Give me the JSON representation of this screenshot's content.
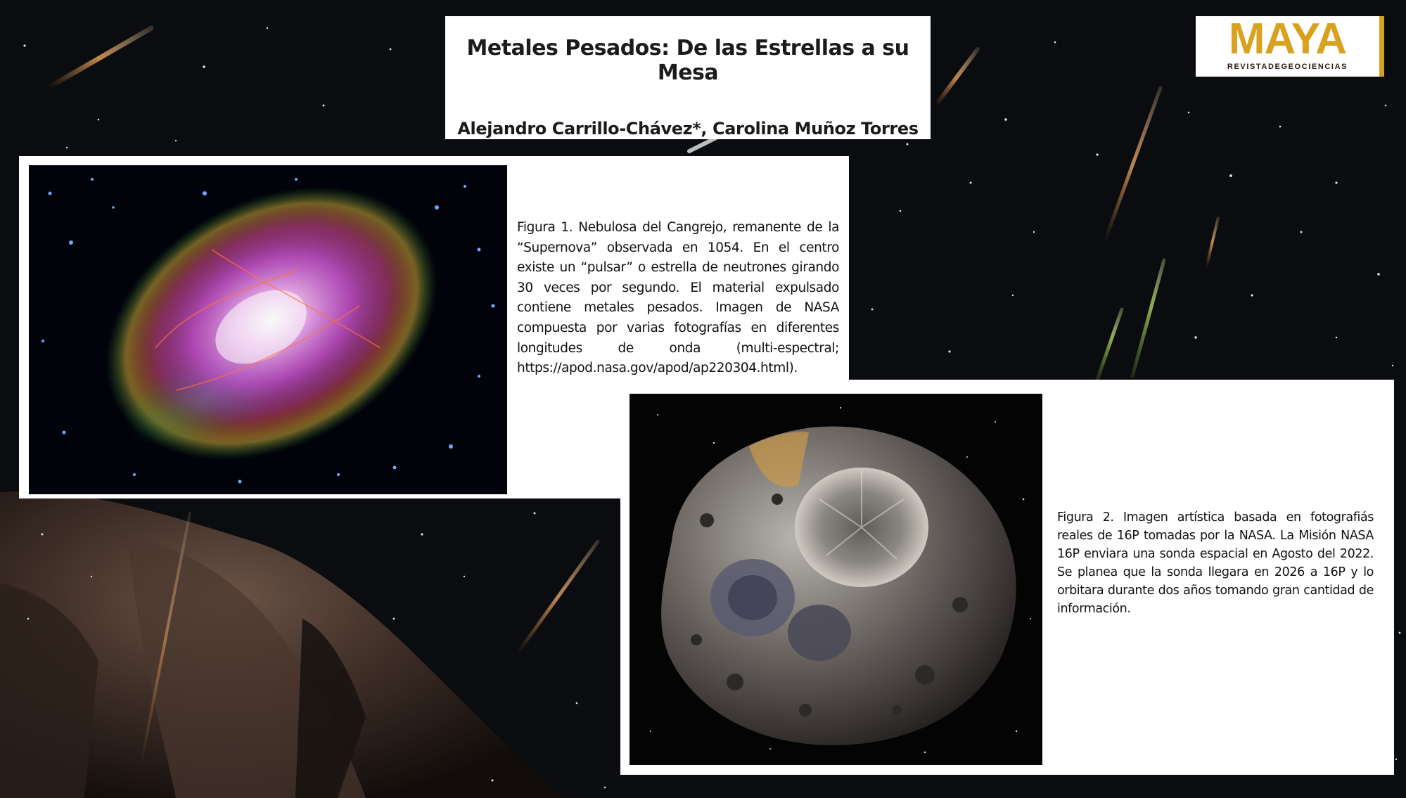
{
  "header": {
    "title": "Metales Pesados: De las Estrellas a su Mesa",
    "authors": "Alejandro Carrillo-Chávez*, Carolina Muñoz Torres"
  },
  "logo": {
    "main": "MAYA",
    "sub": "REVISTADEGEOCIENCIAS",
    "accent_color": "#d9a21e"
  },
  "figure1": {
    "image_icon": "crab-nebula-image",
    "caption": "Figura 1. Nebulosa del Cangrejo, remanente de la “Supernova” observada en 1054. En el centro existe un “pulsar” o estrella de neutrones girando 30 veces por segundo. El material expulsado contiene metales pesados. Imagen de NASA compuesta por varias fotografías en diferentes longitudes de onda (multi-espectral; https://apod.nasa.gov/apod/ap220304.html)."
  },
  "figure2": {
    "image_icon": "asteroid-16p-image",
    "caption": "Figura 2. Imagen artística basada en fotografiás reales de 16P tomadas por la NASA.  La Misión NASA 16P enviara una sonda espacial en Agosto del 2022.  Se planea que la sonda llegara en 2026 a 16P y lo orbitara durante dos años tomando gran cantidad de información."
  }
}
